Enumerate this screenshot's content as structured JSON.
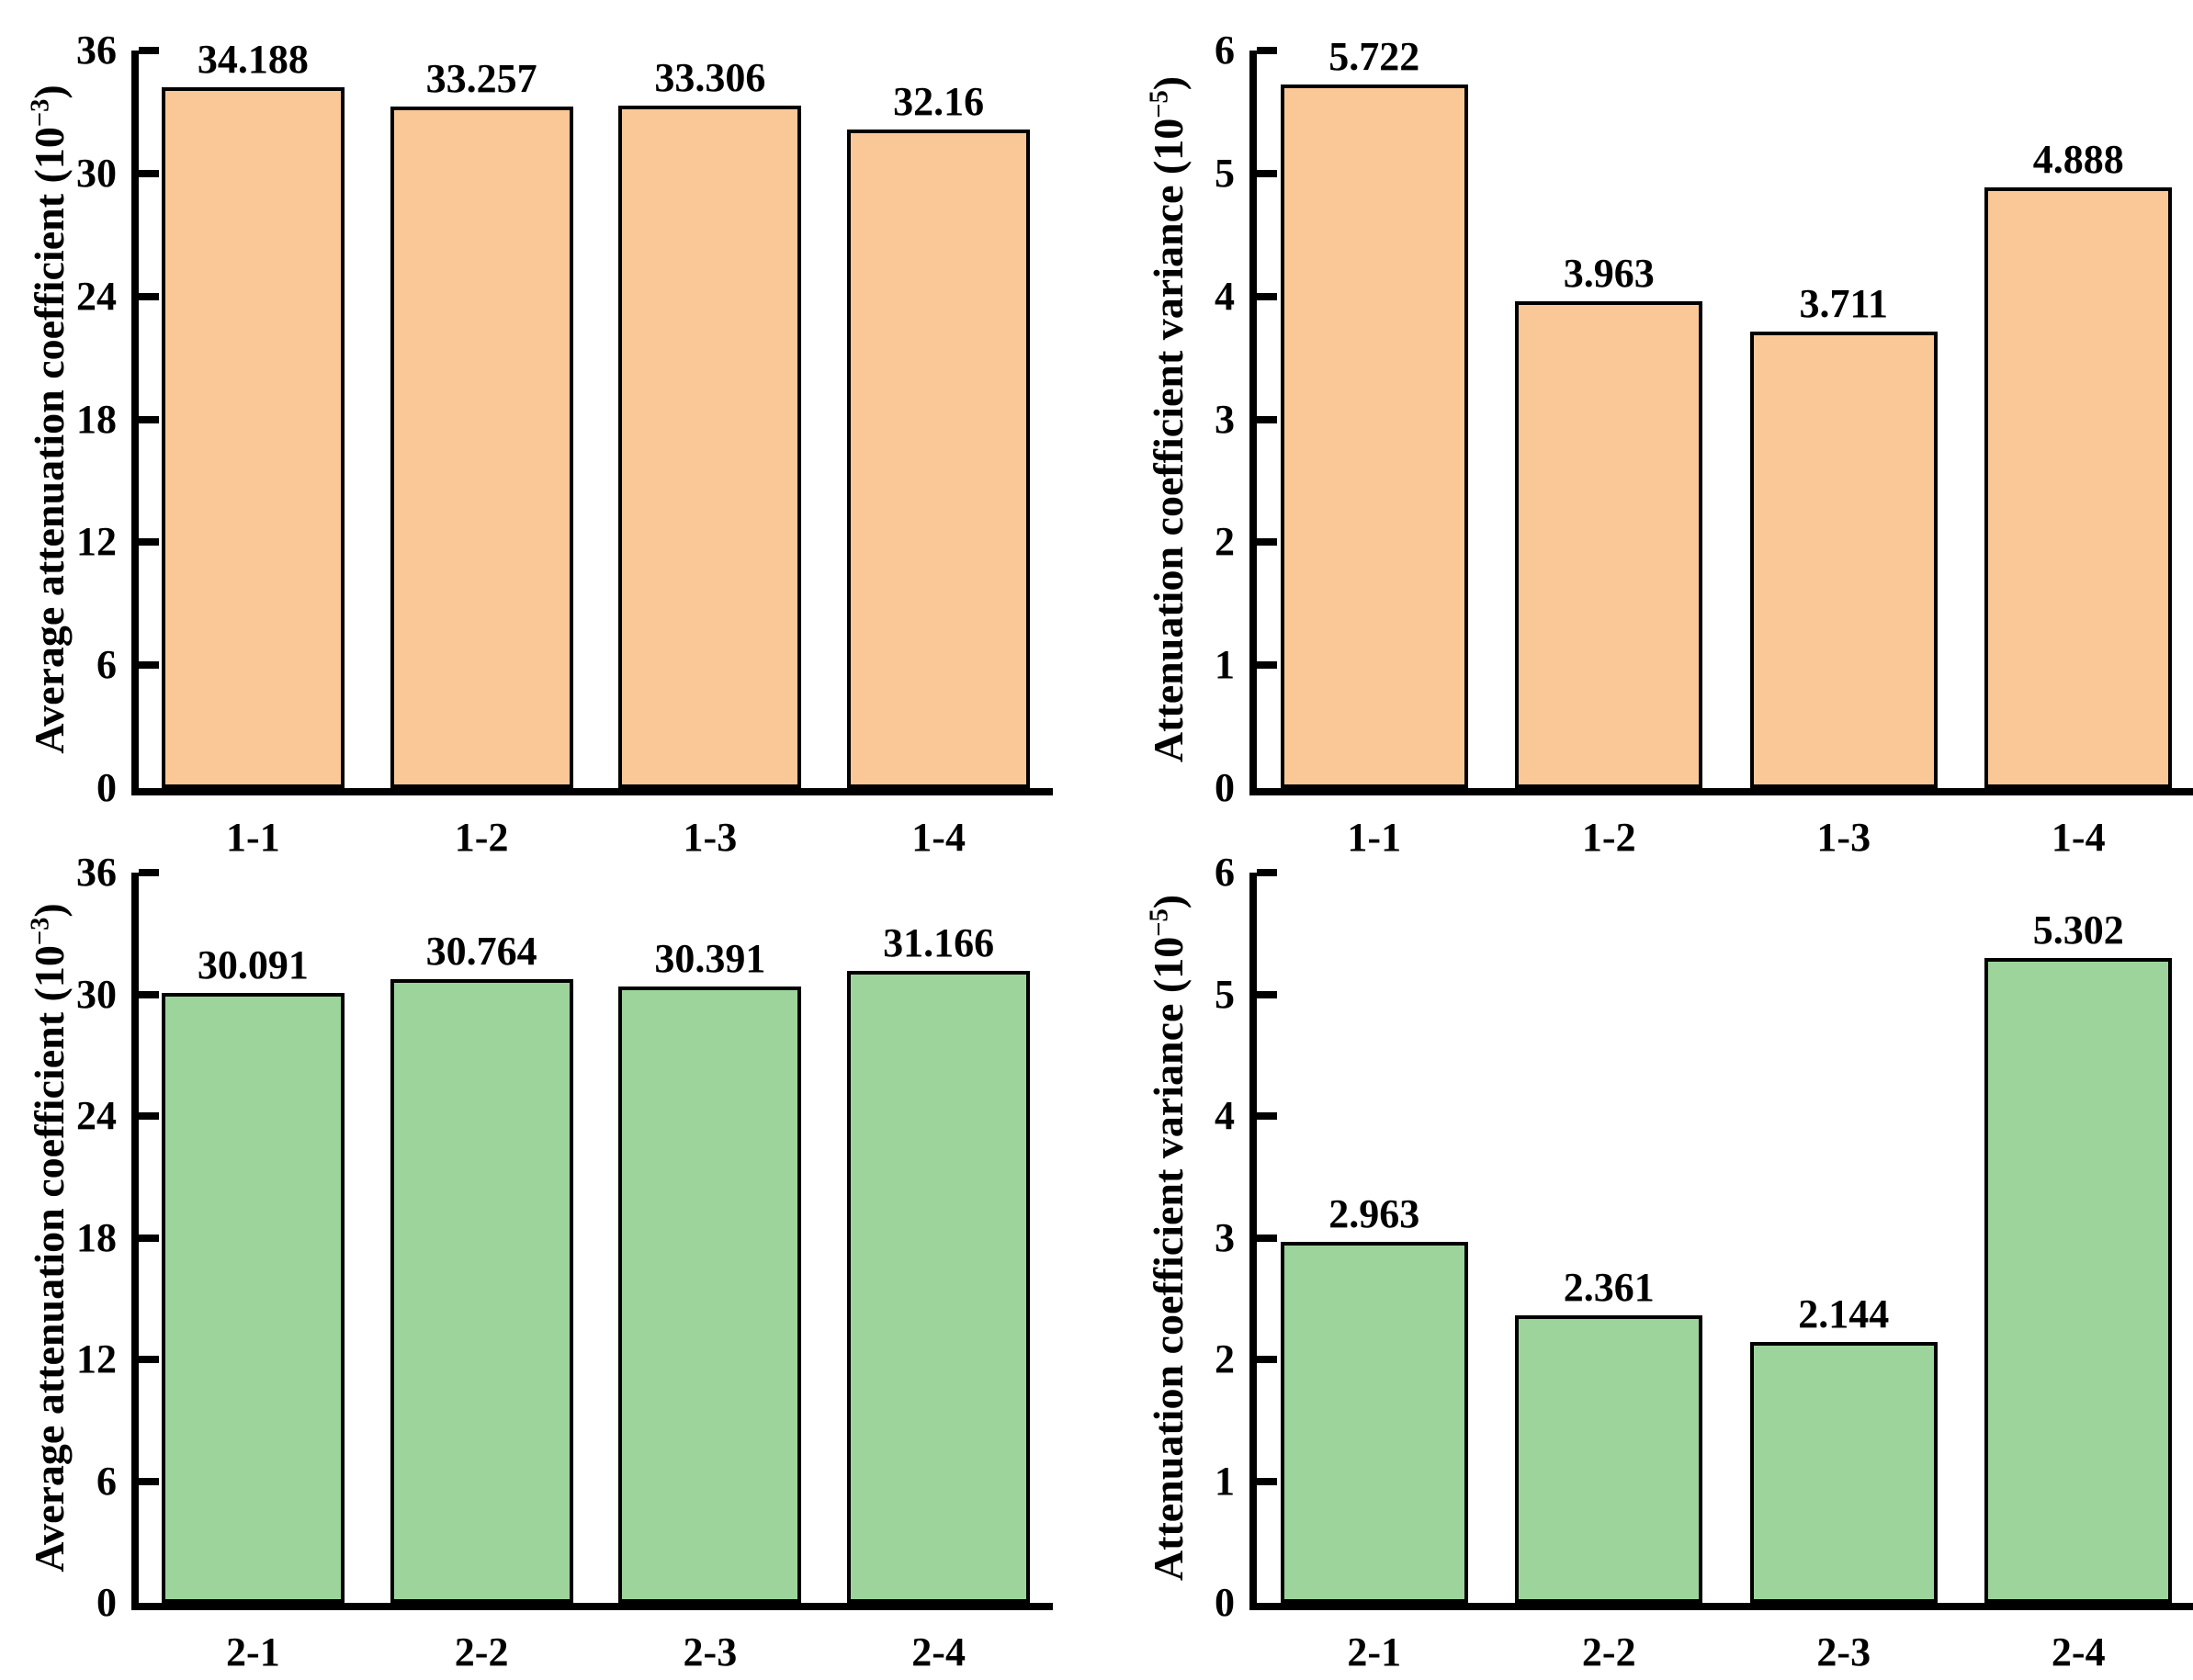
{
  "figure": {
    "background": "#ffffff",
    "text_color": "#000000",
    "axis_color": "#000000",
    "accent_colors": {
      "group1_orange": "#FAC897",
      "group2_green": "#9DD49C"
    }
  },
  "chart_data": [
    {
      "type": "bar",
      "position": "top-left",
      "ylabel": "Average attenuation coefficient (10^-3)",
      "ylabel_prefix": "Average attenuation coefficient (10",
      "ylabel_exp": "−3",
      "ylabel_suffix": ")",
      "xlabel": "",
      "categories": [
        "1-1",
        "1-2",
        "1-3",
        "1-4"
      ],
      "values": [
        34.188,
        33.257,
        33.306,
        32.16
      ],
      "value_labels": [
        "34.188",
        "33.257",
        "33.306",
        "32.16"
      ],
      "ylim": [
        0,
        36
      ],
      "yticks": [
        0,
        6,
        12,
        18,
        24,
        30,
        36
      ],
      "bar_color": "#FAC897",
      "bar_border_color": "#000000",
      "grid": false,
      "legend": false
    },
    {
      "type": "bar",
      "position": "top-right",
      "ylabel": "Attenuation coefficient variance (10^-5)",
      "ylabel_prefix": "Attenuation coefficient variance (10",
      "ylabel_exp": "−5",
      "ylabel_suffix": ")",
      "xlabel": "",
      "categories": [
        "1-1",
        "1-2",
        "1-3",
        "1-4"
      ],
      "values": [
        5.722,
        3.963,
        3.711,
        4.888
      ],
      "value_labels": [
        "5.722",
        "3.963",
        "3.711",
        "4.888"
      ],
      "ylim": [
        0,
        6
      ],
      "yticks": [
        0,
        1,
        2,
        3,
        4,
        5,
        6
      ],
      "bar_color": "#FAC897",
      "bar_border_color": "#000000",
      "grid": false,
      "legend": false
    },
    {
      "type": "bar",
      "position": "bottom-left",
      "ylabel": "Average attenuation coefficient (10^-3)",
      "ylabel_prefix": "Average attenuation coefficient (10",
      "ylabel_exp": "−3",
      "ylabel_suffix": ")",
      "xlabel": "",
      "categories": [
        "2-1",
        "2-2",
        "2-3",
        "2-4"
      ],
      "values": [
        30.091,
        30.764,
        30.391,
        31.166
      ],
      "value_labels": [
        "30.091",
        "30.764",
        "30.391",
        "31.166"
      ],
      "ylim": [
        0,
        36
      ],
      "yticks": [
        0,
        6,
        12,
        18,
        24,
        30,
        36
      ],
      "bar_color": "#9DD49C",
      "bar_border_color": "#000000",
      "grid": false,
      "legend": false
    },
    {
      "type": "bar",
      "position": "bottom-right",
      "ylabel": "Attenuation coefficient variance (10^-5)",
      "ylabel_prefix": "Attenuation coefficient variance (10",
      "ylabel_exp": "−5",
      "ylabel_suffix": ")",
      "xlabel": "",
      "categories": [
        "2-1",
        "2-2",
        "2-3",
        "2-4"
      ],
      "values": [
        2.963,
        2.361,
        2.144,
        5.302
      ],
      "value_labels": [
        "2.963",
        "2.361",
        "2.144",
        "5.302"
      ],
      "ylim": [
        0,
        6
      ],
      "yticks": [
        0,
        1,
        2,
        3,
        4,
        5,
        6
      ],
      "bar_color": "#9DD49C",
      "bar_border_color": "#000000",
      "grid": false,
      "legend": false
    }
  ]
}
